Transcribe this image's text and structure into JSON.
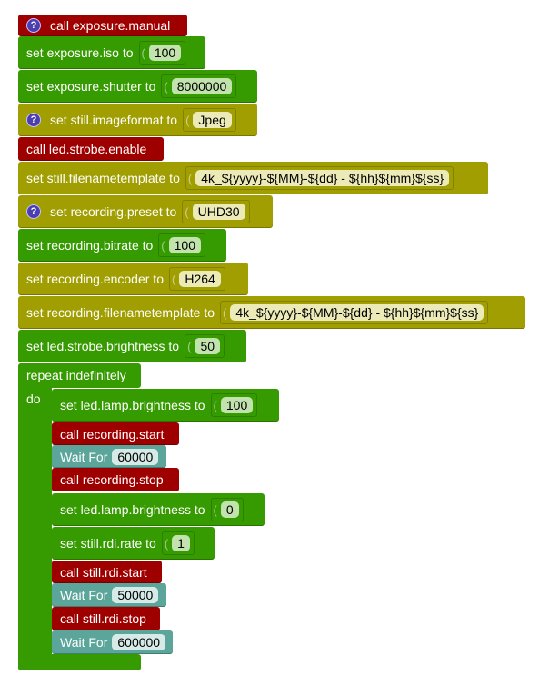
{
  "blocks": [
    {
      "text": "call exposure.manual",
      "help": true
    },
    {
      "text": "set exposure.iso to",
      "value": "100"
    },
    {
      "text": "set exposure.shutter to",
      "value": "8000000"
    },
    {
      "text": "set still.imageformat to",
      "help": true,
      "value": "Jpeg"
    },
    {
      "text": "call led.strobe.enable"
    },
    {
      "text": "set still.filenametemplate to",
      "value": "4k_${yyyy}-${MM}-${dd} - ${hh}${mm}${ss}"
    },
    {
      "text": "set recording.preset to",
      "help": true,
      "value": "UHD30"
    },
    {
      "text": "set recording.bitrate to",
      "value": "100"
    },
    {
      "text": "set recording.encoder to",
      "value": "H264"
    },
    {
      "text": "set recording.filenametemplate to",
      "value": "4k_${yyyy}-${MM}-${dd} - ${hh}${mm}${ss}"
    },
    {
      "text": "set led.strobe.brightness to",
      "value": "50"
    }
  ],
  "loop": {
    "label": "repeat indefinitely",
    "do": "do",
    "help_glyph": "?"
  },
  "inner": [
    {
      "text": "set led.lamp.brightness to",
      "value": "100"
    },
    {
      "text": "call recording.start"
    },
    {
      "text": "Wait For",
      "value": "60000"
    },
    {
      "text": "call recording.stop"
    },
    {
      "text": "set led.lamp.brightness to",
      "value": "0"
    },
    {
      "text": "set still.rdi.rate to",
      "value": "1"
    },
    {
      "text": "call still.rdi.start"
    },
    {
      "text": "Wait For",
      "value": "50000"
    },
    {
      "text": "call still.rdi.stop"
    },
    {
      "text": "Wait For",
      "value": "600000"
    }
  ],
  "colors": {
    "call": "#9e0000",
    "set_number": "#369b00",
    "set_text": "#a09e00",
    "wait": "#5ba59a"
  }
}
